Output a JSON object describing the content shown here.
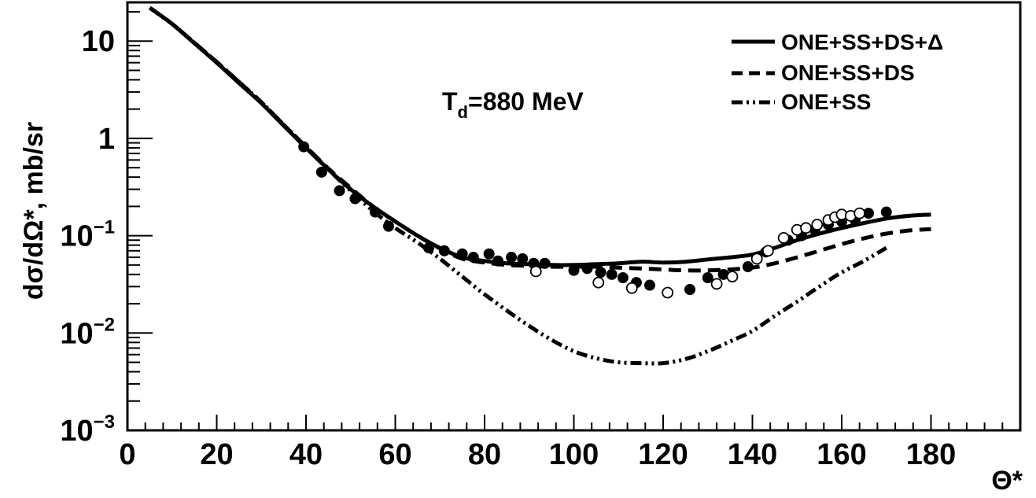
{
  "chart_data": {
    "type": "line",
    "xlabel": "Θ*",
    "ylabel": "dσ/dΩ*, mb/sr",
    "xlim": [
      0,
      200
    ],
    "ylim": [
      0.001,
      25
    ],
    "y_scale": "log",
    "x_ticks": [
      0,
      20,
      40,
      60,
      80,
      100,
      120,
      140,
      160,
      180
    ],
    "y_ticks": [
      {
        "value": 10,
        "label": "10"
      },
      {
        "value": 1,
        "label": "1"
      },
      {
        "value": 0.1,
        "base": "10",
        "exp": "−1"
      },
      {
        "value": 0.01,
        "base": "10",
        "exp": "−2"
      },
      {
        "value": 0.001,
        "base": "10",
        "exp": "−3"
      }
    ],
    "annotation": {
      "main": "T",
      "sub": "d",
      "rest": "=880 MeV"
    },
    "grid": false,
    "legend_position": "top-right",
    "series": [
      {
        "name": "ONE+SS+DS+Δ",
        "style": "solid",
        "x": [
          5,
          10,
          15,
          20,
          25,
          30,
          35,
          40,
          45,
          50,
          55,
          60,
          65,
          70,
          75,
          80,
          85,
          90,
          95,
          100,
          105,
          110,
          115,
          120,
          125,
          130,
          135,
          140,
          145,
          150,
          155,
          160,
          165,
          170,
          175,
          180
        ],
        "y": [
          22,
          15,
          9.5,
          6.0,
          3.7,
          2.3,
          1.35,
          0.8,
          0.48,
          0.3,
          0.2,
          0.14,
          0.1,
          0.075,
          0.06,
          0.055,
          0.052,
          0.051,
          0.05,
          0.05,
          0.051,
          0.052,
          0.054,
          0.053,
          0.054,
          0.057,
          0.06,
          0.064,
          0.075,
          0.09,
          0.105,
          0.12,
          0.135,
          0.15,
          0.16,
          0.165
        ]
      },
      {
        "name": "ONE+SS+DS",
        "style": "dashed",
        "x": [
          5,
          10,
          15,
          20,
          25,
          30,
          35,
          40,
          45,
          50,
          55,
          60,
          65,
          70,
          75,
          80,
          85,
          90,
          95,
          100,
          105,
          110,
          115,
          120,
          125,
          130,
          135,
          140,
          145,
          150,
          155,
          160,
          165,
          170,
          175,
          180
        ],
        "y": [
          22,
          15,
          9.6,
          6.1,
          3.8,
          2.35,
          1.38,
          0.82,
          0.49,
          0.31,
          0.2,
          0.14,
          0.1,
          0.074,
          0.058,
          0.053,
          0.05,
          0.049,
          0.048,
          0.048,
          0.048,
          0.047,
          0.046,
          0.045,
          0.044,
          0.044,
          0.045,
          0.047,
          0.052,
          0.06,
          0.07,
          0.082,
          0.094,
          0.105,
          0.113,
          0.117
        ]
      },
      {
        "name": "ONE+SS",
        "style": "dashdotdot",
        "x": [
          5,
          10,
          15,
          20,
          25,
          30,
          35,
          40,
          45,
          50,
          55,
          60,
          65,
          70,
          75,
          80,
          85,
          90,
          95,
          100,
          105,
          110,
          115,
          120,
          125,
          130,
          135,
          140,
          145,
          150,
          155,
          160,
          165,
          170
        ],
        "y": [
          22,
          15,
          9.6,
          6.1,
          3.8,
          2.35,
          1.38,
          0.82,
          0.48,
          0.29,
          0.18,
          0.12,
          0.085,
          0.058,
          0.038,
          0.025,
          0.017,
          0.0118,
          0.0085,
          0.0065,
          0.0055,
          0.005,
          0.0049,
          0.0049,
          0.0054,
          0.0065,
          0.0082,
          0.0105,
          0.015,
          0.021,
          0.03,
          0.042,
          0.055,
          0.075
        ]
      }
    ],
    "points_filled": {
      "x": [
        39.5,
        43.5,
        47.5,
        51.0,
        55.5,
        58.5,
        67.5,
        71.0,
        75.0,
        77.5,
        81.0,
        83.0,
        86.0,
        88.5,
        91.0,
        93.5,
        100.0,
        103.0,
        106.0,
        108.5,
        111.0,
        114.0,
        117.0,
        126.0,
        130.0,
        133.5,
        139.0,
        143.0,
        148.0,
        151.0,
        154.0,
        157.0,
        160.0,
        163.0,
        166.0,
        170.0
      ],
      "y": [
        0.82,
        0.45,
        0.29,
        0.24,
        0.175,
        0.125,
        0.075,
        0.07,
        0.065,
        0.06,
        0.065,
        0.055,
        0.06,
        0.058,
        0.052,
        0.052,
        0.044,
        0.046,
        0.042,
        0.04,
        0.037,
        0.033,
        0.031,
        0.028,
        0.037,
        0.04,
        0.048,
        0.068,
        0.09,
        0.1,
        0.115,
        0.13,
        0.14,
        0.145,
        0.17,
        0.175
      ]
    },
    "points_open": {
      "x": [
        91.5,
        105.5,
        113.0,
        121.0,
        132.0,
        135.5,
        141.0,
        143.5,
        147.0,
        150.0,
        152.0,
        154.5,
        157.0,
        158.5,
        160.0,
        162.0,
        164.0
      ],
      "y": [
        0.043,
        0.033,
        0.029,
        0.026,
        0.032,
        0.038,
        0.058,
        0.07,
        0.095,
        0.115,
        0.12,
        0.13,
        0.145,
        0.155,
        0.165,
        0.16,
        0.17
      ]
    }
  }
}
